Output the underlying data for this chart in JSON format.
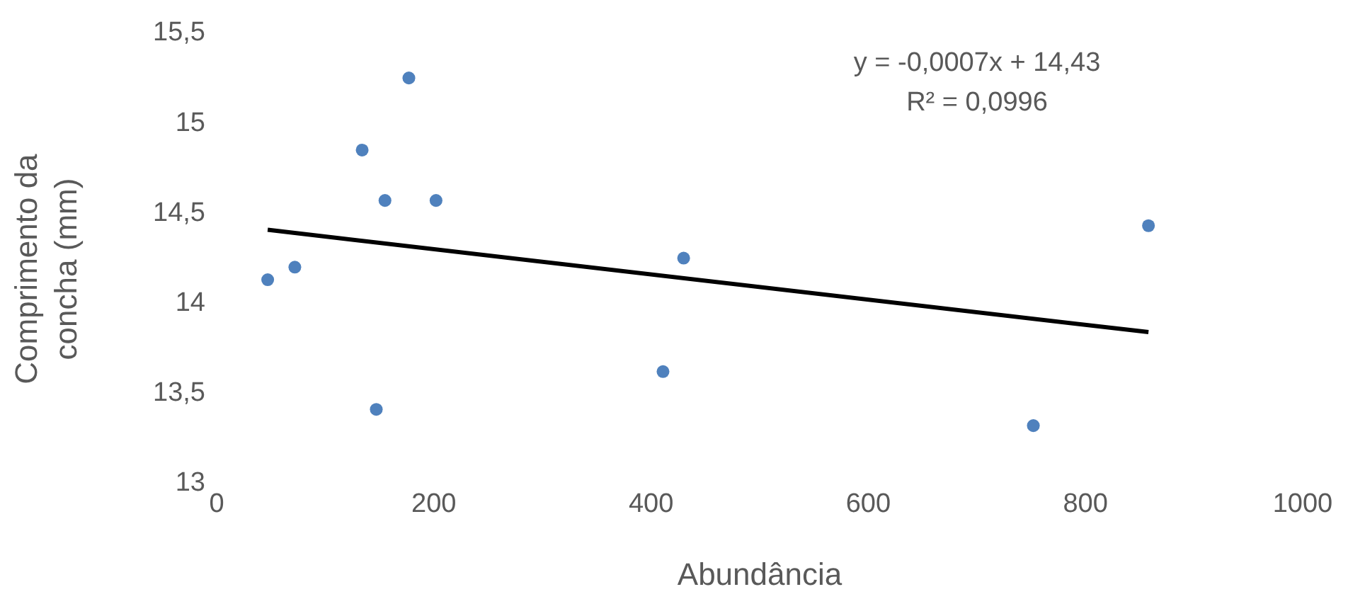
{
  "chart_data": {
    "type": "scatter",
    "xlabel": "Abundância",
    "ylabel": "Comprimento da concha (mm)",
    "annotations": [
      "y = -0,0007x + 14,43",
      "R² = 0,0996"
    ],
    "xlim": [
      0,
      1000
    ],
    "xticks": [
      0,
      200,
      400,
      600,
      800,
      1000
    ],
    "ylim": [
      13,
      15.5
    ],
    "yticks": [
      13,
      {
        "value": 13.5,
        "label": "13,5"
      },
      14,
      {
        "value": 14.5,
        "label": "14,5"
      },
      15,
      {
        "value": 15.5,
        "label": "15,5"
      }
    ],
    "grid": false,
    "marker": "circle",
    "series": [
      {
        "color": "#4f81bd",
        "x": [
          47,
          72,
          134,
          147,
          155,
          177,
          202,
          411,
          430,
          752,
          858
        ],
        "values": [
          14.12,
          14.19,
          14.84,
          13.4,
          14.56,
          15.24,
          14.56,
          13.61,
          14.24,
          13.31,
          14.42
        ]
      },
      {
        "type": "line",
        "color": "#000000",
        "line_style": "solid",
        "marker": "none",
        "x": [
          47,
          858
        ],
        "values": [
          14.397,
          13.829
        ]
      }
    ]
  }
}
